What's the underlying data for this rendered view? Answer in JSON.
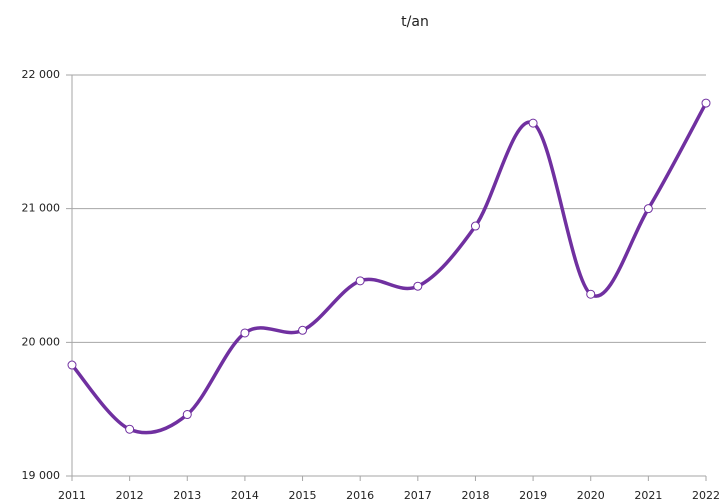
{
  "chart_data": {
    "type": "line",
    "title": "t/an",
    "x": [
      2011,
      2012,
      2013,
      2014,
      2015,
      2016,
      2017,
      2018,
      2019,
      2020,
      2021,
      2022
    ],
    "series": [
      {
        "name": "t/an",
        "color": "#7030a0",
        "values": [
          19830,
          19350,
          19460,
          20070,
          20090,
          20460,
          20420,
          20870,
          21640,
          20360,
          21000,
          21790
        ]
      }
    ],
    "xlim": [
      2011,
      2022
    ],
    "xticks": [
      2011,
      2012,
      2013,
      2014,
      2015,
      2016,
      2017,
      2018,
      2019,
      2020,
      2021,
      2022
    ],
    "ylim": [
      19000,
      22000
    ],
    "yticks": [
      {
        "value": 19000,
        "label": "19 000"
      },
      {
        "value": 20000,
        "label": "20 000"
      },
      {
        "value": 21000,
        "label": "21 000"
      },
      {
        "value": 22000,
        "label": "22 000"
      }
    ],
    "grid": true,
    "smooth": true
  }
}
